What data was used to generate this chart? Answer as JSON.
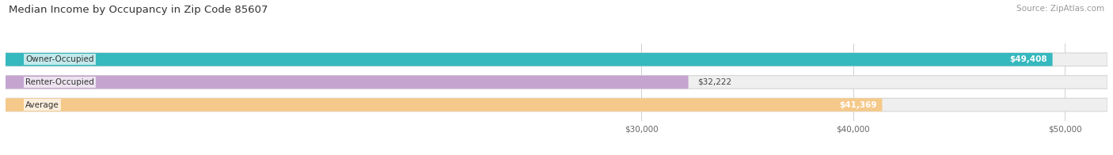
{
  "title": "Median Income by Occupancy in Zip Code 85607",
  "source": "Source: ZipAtlas.com",
  "categories": [
    "Owner-Occupied",
    "Renter-Occupied",
    "Average"
  ],
  "values": [
    49408,
    32222,
    41369
  ],
  "bar_colors": [
    "#35b8be",
    "#c5a5d0",
    "#f5c98a"
  ],
  "labels": [
    "$49,408",
    "$32,222",
    "$41,369"
  ],
  "xmin": 0,
  "xmax": 52000,
  "xticks": [
    30000,
    40000,
    50000
  ],
  "xtick_labels": [
    "$30,000",
    "$40,000",
    "$50,000"
  ],
  "figsize": [
    14.06,
    1.96
  ],
  "dpi": 100,
  "bg_color": "#ffffff",
  "bar_bg_color": "#efefef",
  "bar_bg_border_color": "#d5d5d5"
}
